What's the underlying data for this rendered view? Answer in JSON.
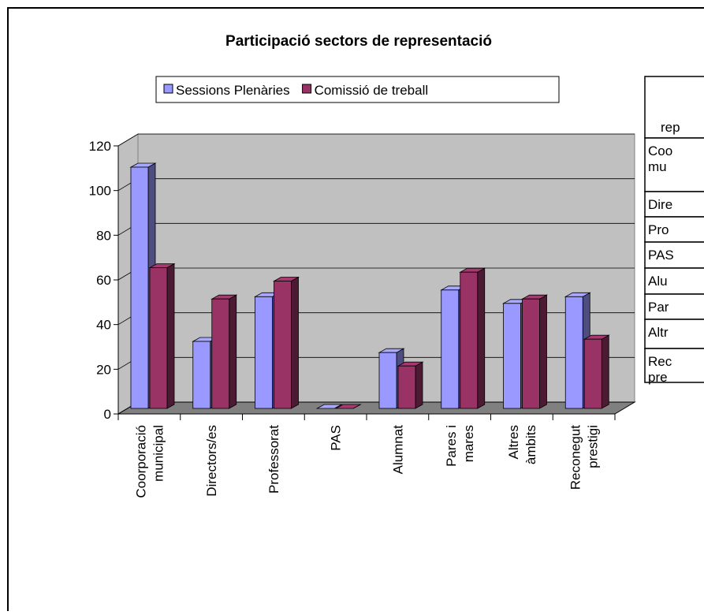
{
  "chart_data": {
    "type": "bar3d",
    "title": "Participació sectors de representació",
    "categories": [
      [
        "Coorporació",
        "municipal"
      ],
      [
        "Directors/es"
      ],
      [
        "Professorat"
      ],
      [
        "PAS"
      ],
      [
        "Alumnat"
      ],
      [
        "Pares i",
        "mares"
      ],
      [
        "Altres",
        "àmbits"
      ],
      [
        "Reconegut",
        "prestigi"
      ]
    ],
    "series": [
      {
        "name": "Sessions Plenàries",
        "color": "#9999ff",
        "values": [
          108,
          30,
          50,
          0,
          25,
          53,
          47,
          50
        ]
      },
      {
        "name": "Comissió de treball",
        "color": "#993366",
        "values": [
          63,
          49,
          57,
          0,
          19,
          61,
          49,
          31
        ]
      }
    ],
    "ylim": [
      0,
      120
    ],
    "yticks": [
      0,
      20,
      40,
      60,
      80,
      100,
      120
    ],
    "grid": true,
    "legend": "top"
  },
  "table": {
    "rows": [
      [
        "rep"
      ],
      [
        "Coo",
        "mu"
      ],
      [
        "Dire"
      ],
      [
        "Pro"
      ],
      [
        "PAS"
      ],
      [
        "Alu"
      ],
      [
        "Par"
      ],
      [
        "Altr"
      ],
      [
        "Rec",
        "pre"
      ]
    ]
  }
}
